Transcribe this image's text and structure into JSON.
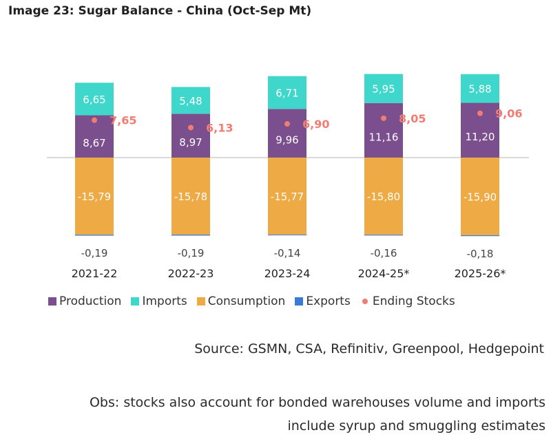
{
  "title": "Image 23: Sugar Balance - China (Oct-Sep Mt)",
  "source": "Source: GSMN, CSA, Refinitiv, Greenpool, Hedgepoint",
  "obs_line1": "Obs: stocks also account for bonded warehouses volume and imports",
  "obs_line2": "include syrup and smuggling estimates",
  "colors": {
    "production": "#7B4F8E",
    "imports": "#3FD6CB",
    "consumption": "#EDAA45",
    "exports": "#3A7BD5",
    "ending_stocks": "#F07C72"
  },
  "chart_data": {
    "type": "bar",
    "stacked": true,
    "categories": [
      "2021-22",
      "2022-23",
      "2023-24",
      "2024-25*",
      "2025-26*"
    ],
    "series": [
      {
        "name": "Production",
        "values": [
          8.67,
          8.97,
          9.96,
          11.16,
          11.2
        ],
        "labels": [
          "8,67",
          "8,97",
          "9,96",
          "11,16",
          "11,20"
        ]
      },
      {
        "name": "Imports",
        "values": [
          6.65,
          5.48,
          6.71,
          5.95,
          5.88
        ],
        "labels": [
          "6,65",
          "5,48",
          "6,71",
          "5,95",
          "5,88"
        ]
      },
      {
        "name": "Consumption",
        "values": [
          -15.79,
          -15.78,
          -15.77,
          -15.8,
          -15.9
        ],
        "labels": [
          "-15,79",
          "-15,78",
          "-15,77",
          "-15,80",
          "-15,90"
        ]
      },
      {
        "name": "Exports",
        "values": [
          -0.19,
          -0.19,
          -0.14,
          -0.16,
          -0.18
        ],
        "labels": [
          "-0,19",
          "-0,19",
          "-0,14",
          "-0,16",
          "-0,18"
        ]
      },
      {
        "name": "Ending Stocks",
        "type": "scatter",
        "values": [
          7.65,
          6.13,
          6.9,
          8.05,
          9.06
        ],
        "labels": [
          "7,65",
          "6,13",
          "6,90",
          "8,05",
          "9,06"
        ]
      }
    ],
    "legend": [
      "Production",
      "Imports",
      "Consumption",
      "Exports",
      "Ending Stocks"
    ],
    "legend_position": "bottom",
    "grid": false
  }
}
